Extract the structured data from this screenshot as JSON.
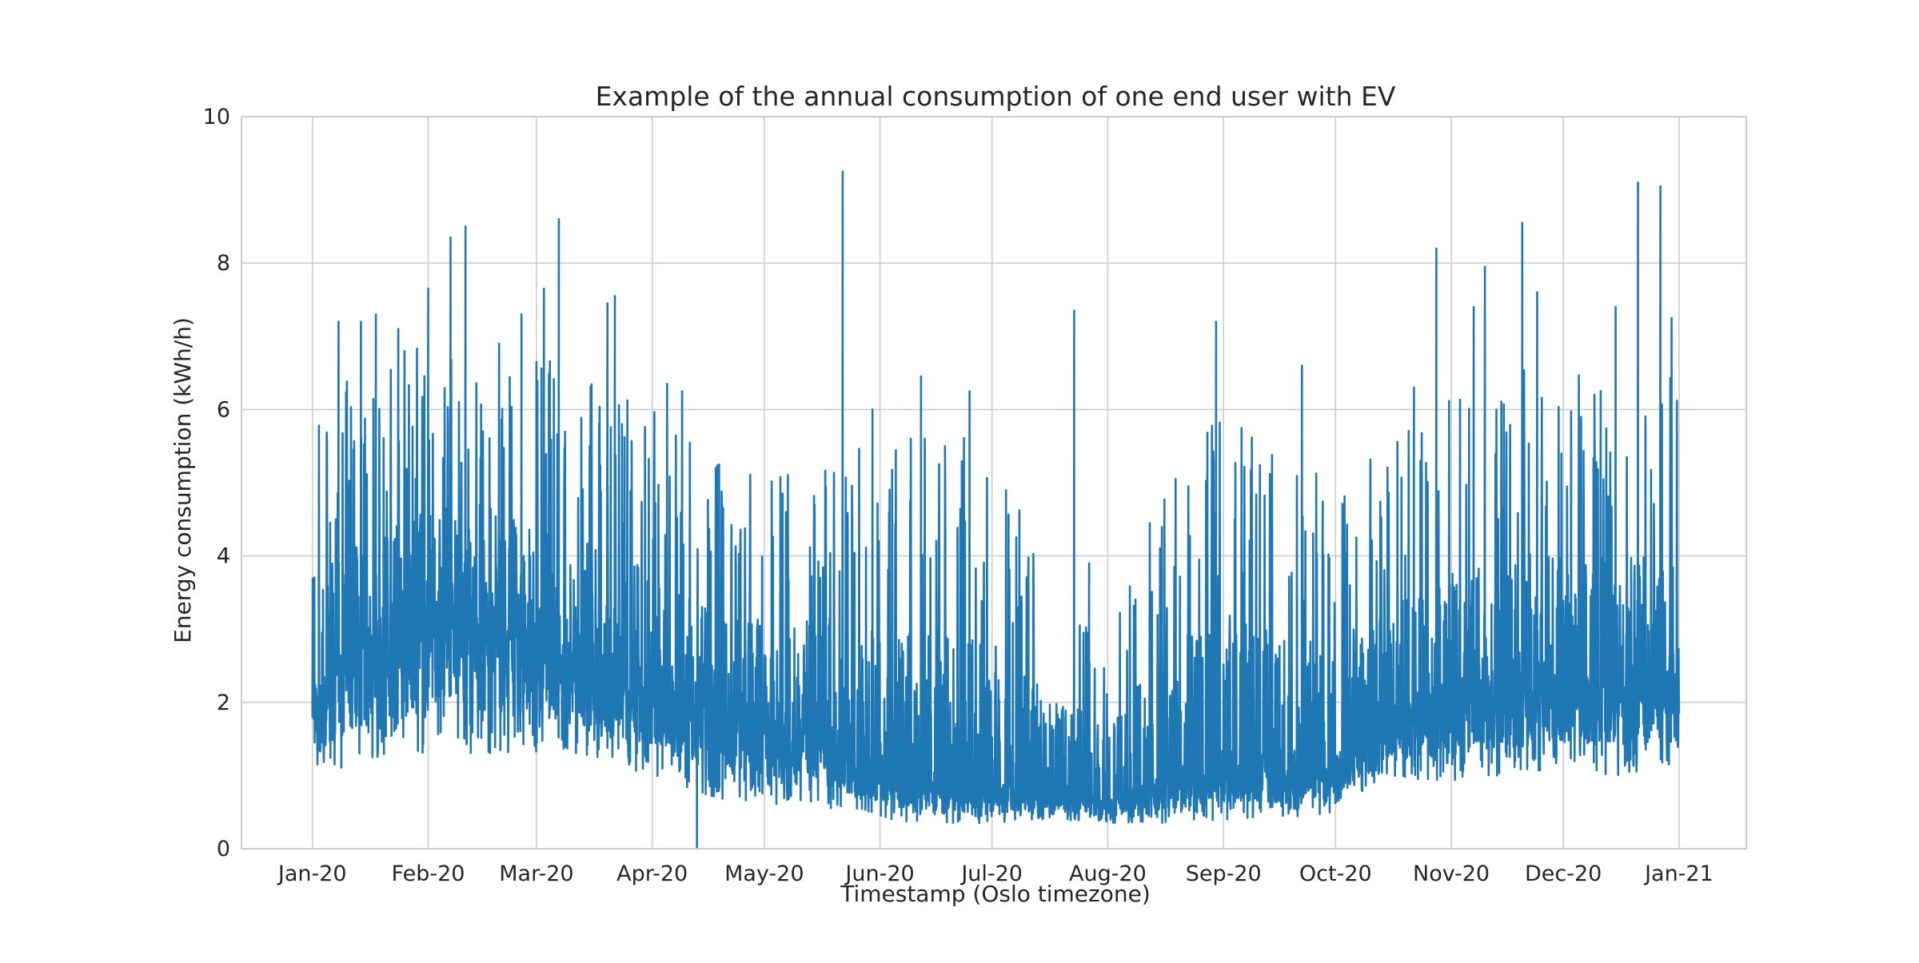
{
  "chart_data": {
    "type": "line",
    "title": "Example of the annual consumption of one end user with EV",
    "xlabel": "Timestamp (Oslo timezone)",
    "ylabel": "Energy consumption (kWh/h)",
    "x_range": [
      "2020-01-01",
      "2021-01-01"
    ],
    "ylim": [
      0,
      10
    ],
    "xlim": [
      "2019-12-13",
      "2021-01-19"
    ],
    "x_ticks": [
      {
        "date": "2020-01-01",
        "label": "Jan-20"
      },
      {
        "date": "2020-02-01",
        "label": "Feb-20"
      },
      {
        "date": "2020-03-01",
        "label": "Mar-20"
      },
      {
        "date": "2020-04-01",
        "label": "Apr-20"
      },
      {
        "date": "2020-05-01",
        "label": "May-20"
      },
      {
        "date": "2020-06-01",
        "label": "Jun-20"
      },
      {
        "date": "2020-07-01",
        "label": "Jul-20"
      },
      {
        "date": "2020-08-01",
        "label": "Aug-20"
      },
      {
        "date": "2020-09-01",
        "label": "Sep-20"
      },
      {
        "date": "2020-10-01",
        "label": "Oct-20"
      },
      {
        "date": "2020-11-01",
        "label": "Nov-20"
      },
      {
        "date": "2020-12-01",
        "label": "Dec-20"
      },
      {
        "date": "2021-01-01",
        "label": "Jan-21"
      }
    ],
    "y_ticks": [
      {
        "value": 0,
        "label": "0"
      },
      {
        "value": 2,
        "label": "2"
      },
      {
        "value": 4,
        "label": "4"
      },
      {
        "value": 6,
        "label": "6"
      },
      {
        "value": 8,
        "label": "8"
      },
      {
        "value": 10,
        "label": "10"
      }
    ],
    "grid": true,
    "series": [
      {
        "color": "#1f77b4",
        "profile": [
          {
            "date": "2020-01-01",
            "base": 1.8,
            "low": 1.0,
            "peak": 6.0
          },
          {
            "date": "2020-01-15",
            "base": 2.4,
            "low": 1.1,
            "peak": 6.6
          },
          {
            "date": "2020-02-01",
            "base": 2.8,
            "low": 1.2,
            "peak": 7.0
          },
          {
            "date": "2020-02-15",
            "base": 3.0,
            "low": 1.3,
            "peak": 6.8
          },
          {
            "date": "2020-03-01",
            "base": 2.6,
            "low": 1.3,
            "peak": 6.8
          },
          {
            "date": "2020-03-15",
            "base": 2.3,
            "low": 1.2,
            "peak": 6.5
          },
          {
            "date": "2020-04-01",
            "base": 2.0,
            "low": 1.0,
            "peak": 6.0
          },
          {
            "date": "2020-04-15",
            "base": 1.7,
            "low": 0.7,
            "peak": 5.4
          },
          {
            "date": "2020-05-01",
            "base": 1.5,
            "low": 0.6,
            "peak": 5.2
          },
          {
            "date": "2020-05-15",
            "base": 1.4,
            "low": 0.6,
            "peak": 5.4
          },
          {
            "date": "2020-06-01",
            "base": 0.9,
            "low": 0.4,
            "peak": 5.5
          },
          {
            "date": "2020-06-15",
            "base": 0.7,
            "low": 0.35,
            "peak": 5.8
          },
          {
            "date": "2020-07-01",
            "base": 0.7,
            "low": 0.35,
            "peak": 5.5
          },
          {
            "date": "2020-07-15",
            "base": 0.75,
            "low": 0.4,
            "peak": 4.0
          },
          {
            "date": "2020-08-01",
            "base": 0.55,
            "low": 0.35,
            "peak": 3.0
          },
          {
            "date": "2020-08-15",
            "base": 0.8,
            "low": 0.35,
            "peak": 5.0
          },
          {
            "date": "2020-09-01",
            "base": 1.0,
            "low": 0.4,
            "peak": 6.0
          },
          {
            "date": "2020-09-15",
            "base": 1.0,
            "low": 0.4,
            "peak": 5.4
          },
          {
            "date": "2020-10-01",
            "base": 1.0,
            "low": 0.5,
            "peak": 5.0
          },
          {
            "date": "2020-10-15",
            "base": 1.6,
            "low": 1.0,
            "peak": 5.6
          },
          {
            "date": "2020-11-01",
            "base": 1.8,
            "low": 0.9,
            "peak": 6.2
          },
          {
            "date": "2020-11-15",
            "base": 2.0,
            "low": 1.0,
            "peak": 6.6
          },
          {
            "date": "2020-12-01",
            "base": 2.0,
            "low": 1.1,
            "peak": 6.5
          },
          {
            "date": "2020-12-15",
            "base": 2.0,
            "low": 1.0,
            "peak": 6.4
          },
          {
            "date": "2021-01-01",
            "base": 2.0,
            "low": 1.0,
            "peak": 6.6
          }
        ],
        "spikes": [
          {
            "date": "2020-01-08",
            "value": 7.2
          },
          {
            "date": "2020-01-14",
            "value": 7.2
          },
          {
            "date": "2020-01-18",
            "value": 7.3
          },
          {
            "date": "2020-01-24",
            "value": 7.1
          },
          {
            "date": "2020-02-01",
            "value": 7.65
          },
          {
            "date": "2020-02-07",
            "value": 8.35
          },
          {
            "date": "2020-02-11",
            "value": 8.5
          },
          {
            "date": "2020-02-20",
            "value": 6.9
          },
          {
            "date": "2020-02-26",
            "value": 7.3
          },
          {
            "date": "2020-03-01",
            "value": 6.65
          },
          {
            "date": "2020-03-03",
            "value": 7.65
          },
          {
            "date": "2020-03-07",
            "value": 8.6
          },
          {
            "date": "2020-03-20",
            "value": 7.45
          },
          {
            "date": "2020-03-22",
            "value": 7.55
          },
          {
            "date": "2020-04-05",
            "value": 6.35
          },
          {
            "date": "2020-04-09",
            "value": 6.25
          },
          {
            "date": "2020-04-18",
            "value": 5.2
          },
          {
            "date": "2020-05-22",
            "value": 9.25
          },
          {
            "date": "2020-05-30",
            "value": 6.0
          },
          {
            "date": "2020-06-12",
            "value": 6.45
          },
          {
            "date": "2020-06-25",
            "value": 6.25
          },
          {
            "date": "2020-07-23",
            "value": 7.35
          },
          {
            "date": "2020-07-27",
            "value": 3.9
          },
          {
            "date": "2020-08-30",
            "value": 7.2
          },
          {
            "date": "2020-09-22",
            "value": 6.6
          },
          {
            "date": "2020-10-22",
            "value": 6.3
          },
          {
            "date": "2020-10-28",
            "value": 8.2
          },
          {
            "date": "2020-11-07",
            "value": 7.4
          },
          {
            "date": "2020-11-10",
            "value": 7.95
          },
          {
            "date": "2020-11-20",
            "value": 8.55
          },
          {
            "date": "2020-11-24",
            "value": 7.6
          },
          {
            "date": "2020-12-15",
            "value": 7.4
          },
          {
            "date": "2020-12-21",
            "value": 9.1
          },
          {
            "date": "2020-12-27",
            "value": 9.05
          },
          {
            "date": "2020-12-30",
            "value": 7.25
          }
        ],
        "dips": [
          {
            "date": "2020-04-13",
            "value": 0.0
          }
        ]
      }
    ]
  }
}
